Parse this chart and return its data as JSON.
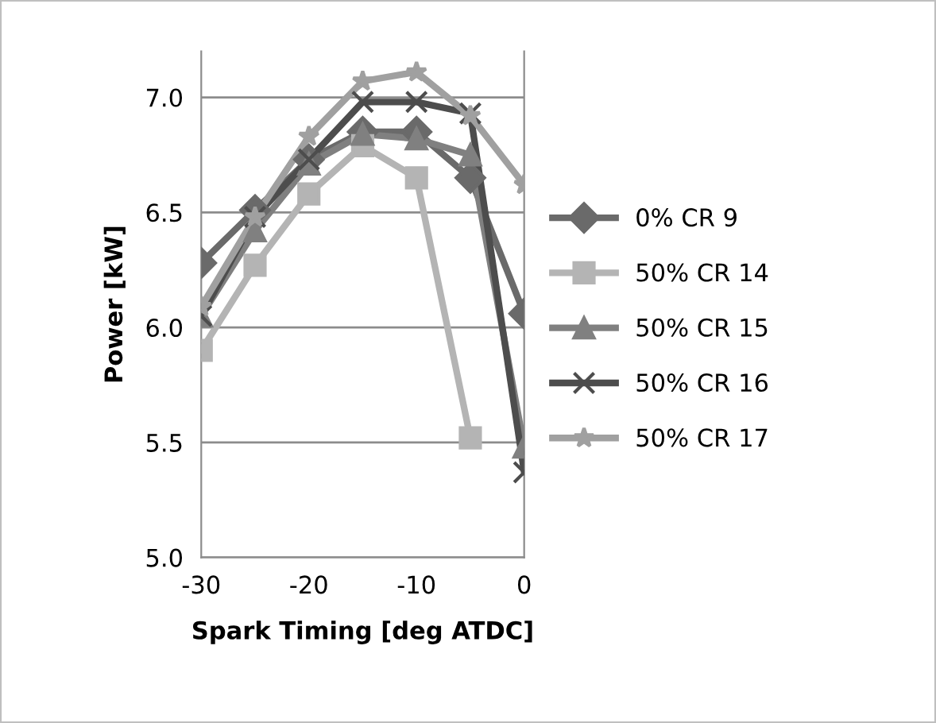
{
  "chart_data": {
    "type": "line",
    "xlabel": "Spark Timing [deg ATDC]",
    "ylabel": "Power [kW]",
    "x": [
      -30,
      -25,
      -20,
      -15,
      -10,
      -5,
      0
    ],
    "series": [
      {
        "name": "0% CR 9",
        "color": "#6a6a6a",
        "marker": "diamond",
        "values": [
          6.28,
          6.51,
          6.73,
          6.85,
          6.85,
          6.65,
          6.06
        ]
      },
      {
        "name": "50% CR 14",
        "color": "#b4b4b4",
        "marker": "square",
        "values": [
          5.9,
          6.27,
          6.58,
          6.79,
          6.65,
          5.52,
          null
        ]
      },
      {
        "name": "50% CR 15",
        "color": "#808080",
        "marker": "triangle",
        "values": [
          6.05,
          6.42,
          6.71,
          6.84,
          6.82,
          6.75,
          5.48
        ]
      },
      {
        "name": "50% CR 16",
        "color": "#4d4d4d",
        "marker": "cross",
        "values": [
          6.05,
          6.48,
          6.73,
          6.98,
          6.98,
          6.93,
          5.37
        ]
      },
      {
        "name": "50% CR 17",
        "color": "#a0a0a0",
        "marker": "star",
        "values": [
          6.09,
          6.48,
          6.83,
          7.07,
          7.11,
          6.92,
          6.62
        ]
      }
    ],
    "xlim": [
      -30,
      0
    ],
    "xticks": [
      -30,
      -20,
      -10,
      0
    ],
    "ylim": [
      5.0,
      7.2
    ],
    "yticks": [
      {
        "value": 5,
        "label": "5.0"
      },
      5.5,
      {
        "value": 6,
        "label": "6.0"
      },
      6.5,
      {
        "value": 7,
        "label": "7.0"
      }
    ],
    "grid": "y",
    "legend": "right",
    "line_style": "solid"
  }
}
